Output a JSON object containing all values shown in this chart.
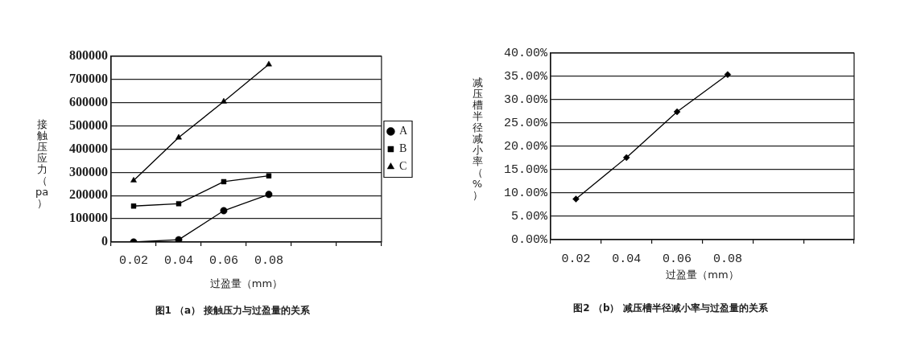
{
  "chart_data": [
    {
      "type": "line",
      "title": "图1 （a） 接触压力与过盈量的关系",
      "xlabel": "过盈量（mm）",
      "ylabel": "接触压应力（pa）",
      "categories": [
        "0.02",
        "0.04",
        "0.06",
        "0.08",
        null,
        null
      ],
      "series": [
        {
          "name": "A",
          "color": "#000000",
          "marker": "circle",
          "values": [
            0,
            10000,
            135000,
            205000,
            null,
            null
          ]
        },
        {
          "name": "B",
          "color": "#000000",
          "marker": "square",
          "values": [
            155000,
            165000,
            260000,
            285000,
            null,
            null
          ]
        },
        {
          "name": "C",
          "color": "#000000",
          "marker": "triangle",
          "values": [
            265000,
            450000,
            605000,
            765000,
            null,
            null
          ]
        }
      ],
      "ylim": [
        0,
        800000
      ],
      "yticks": [
        0,
        100000,
        200000,
        300000,
        400000,
        500000,
        600000,
        700000,
        800000
      ],
      "grid": "y",
      "legend": "right",
      "line_style": "solid"
    },
    {
      "type": "line",
      "title": "图2 （b） 减压槽半径减小率与过盈量的关系",
      "xlabel": "过盈量（mm）",
      "ylabel": "减压槽半径减小率（%）",
      "categories": [
        "0.02",
        "0.04",
        "0.06",
        "0.08",
        null,
        null
      ],
      "series": [
        {
          "color": "#000000",
          "marker": "diamond",
          "values": [
            8.7,
            17.6,
            27.4,
            35.4,
            null,
            null
          ]
        }
      ],
      "ylim": [
        0,
        40
      ],
      "yticks": [
        {
          "value": 0,
          "label": "0.00%"
        },
        {
          "value": 5,
          "label": "5.00%"
        },
        {
          "value": 10,
          "label": "10.00%"
        },
        {
          "value": 15,
          "label": "15.00%"
        },
        {
          "value": 20,
          "label": "20.00%"
        },
        {
          "value": 25,
          "label": "25.00%"
        },
        {
          "value": 30,
          "label": "30.00%"
        },
        {
          "value": 35,
          "label": "35.00%"
        },
        {
          "value": 40,
          "label": "40.00%"
        }
      ],
      "grid": "y",
      "line_style": "solid"
    }
  ]
}
